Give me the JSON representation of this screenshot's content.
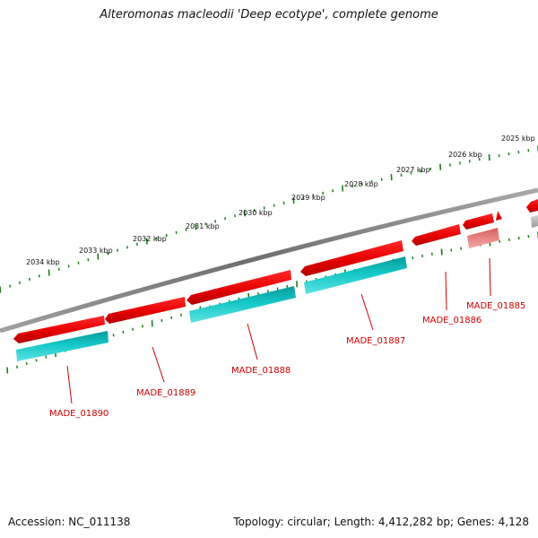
{
  "title": "Alteromonas macleodii 'Deep ecotype', complete genome",
  "footer": {
    "accession": "Accession: NC_011138",
    "summary": "Topology: circular; Length: 4,412,282 bp; Genes: 4,128"
  },
  "colors": {
    "backbone": "#777777",
    "tick": "#1a7f1a",
    "forward_gene": "#e60000",
    "reverse_gene": "#10c4c4",
    "faded_gene": "#ef8a8a",
    "other_gene": "#b5b5b5",
    "label": "#cc0000"
  },
  "kbp_ticks": [
    {
      "kbp": 2025,
      "label": "2025 kbp"
    },
    {
      "kbp": 2026,
      "label": "2026 kbp"
    },
    {
      "kbp": 2027,
      "label": "2027 kbp"
    },
    {
      "kbp": 2028,
      "label": "2028 kbp"
    },
    {
      "kbp": 2029,
      "label": "2029 kbp"
    },
    {
      "kbp": 2030,
      "label": "2030 kbp"
    },
    {
      "kbp": 2031,
      "label": "2031 kbp"
    },
    {
      "kbp": 2032,
      "label": "2032 kbp"
    },
    {
      "kbp": 2033,
      "label": "2033 kbp"
    },
    {
      "kbp": 2034,
      "label": "2034 kbp"
    }
  ],
  "gene_labels": [
    {
      "id": "made-01885",
      "text": "MADE_01885"
    },
    {
      "id": "made-01886",
      "text": "MADE_01886"
    },
    {
      "id": "made-01887",
      "text": "MADE_01887"
    },
    {
      "id": "made-01888",
      "text": "MADE_01888"
    },
    {
      "id": "made-01889",
      "text": "MADE_01889"
    },
    {
      "id": "made-01890",
      "text": "MADE_01890"
    }
  ]
}
